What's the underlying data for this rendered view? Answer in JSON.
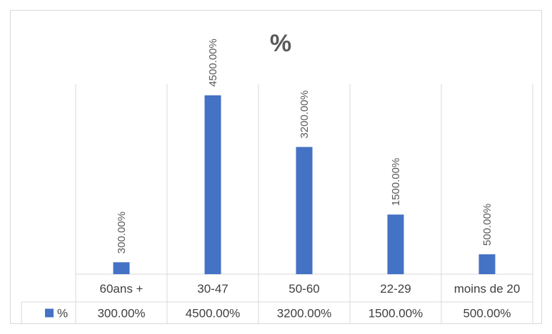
{
  "chart_data": {
    "type": "bar",
    "title": "%",
    "xlabel": "",
    "ylabel": "",
    "categories": [
      "60ans +",
      "30-47",
      "50-60",
      "22-29",
      "moins de 20"
    ],
    "series": [
      {
        "name": "%",
        "values": [
          300,
          4500,
          3200,
          1500,
          500
        ],
        "labels": [
          "300.00%",
          "4500.00%",
          "3200.00%",
          "1500.00%",
          "500.00%"
        ]
      }
    ],
    "ylim": [
      0,
      5500
    ],
    "grid": "vertical",
    "legend": "data-table",
    "data_table": true,
    "colors": {
      "bar": "#4472c4",
      "grid": "#d9d9d9",
      "text": "#404040"
    }
  }
}
